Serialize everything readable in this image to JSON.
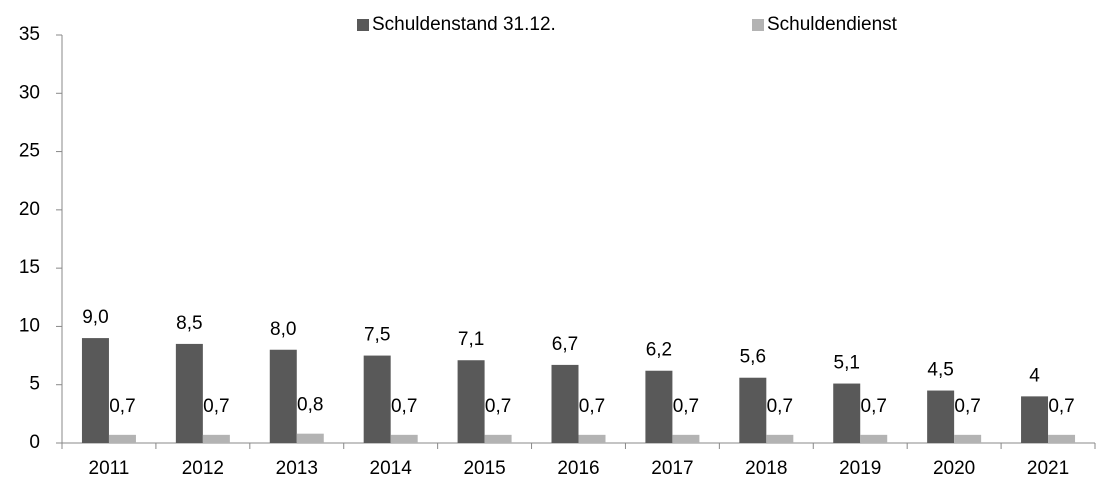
{
  "chart_data": {
    "type": "bar",
    "categories": [
      "2011",
      "2012",
      "2013",
      "2014",
      "2015",
      "2016",
      "2017",
      "2018",
      "2019",
      "2020",
      "2021"
    ],
    "series": [
      {
        "name": "Schuldenstand 31.12.",
        "color": "#595959",
        "values": [
          9.0,
          8.5,
          8.0,
          7.5,
          7.1,
          6.7,
          6.2,
          5.6,
          5.1,
          4.5,
          4
        ],
        "value_labels": [
          "9,0",
          "8,5",
          "8,0",
          "7,5",
          "7,1",
          "6,7",
          "6,2",
          "5,6",
          "5,1",
          "4,5",
          "4"
        ]
      },
      {
        "name": "Schuldendienst",
        "color": "#b3b3b3",
        "values": [
          0.7,
          0.7,
          0.8,
          0.7,
          0.7,
          0.7,
          0.7,
          0.7,
          0.7,
          0.7,
          0.7
        ],
        "value_labels": [
          "0,7",
          "0,7",
          "0,8",
          "0,7",
          "0,7",
          "0,7",
          "0,7",
          "0,7",
          "0,7",
          "0,7",
          "0,7"
        ]
      }
    ],
    "ylim": [
      0,
      35
    ],
    "yticks": [
      0,
      5,
      10,
      15,
      20,
      25,
      30,
      35
    ],
    "grid": false,
    "legend": "top"
  }
}
